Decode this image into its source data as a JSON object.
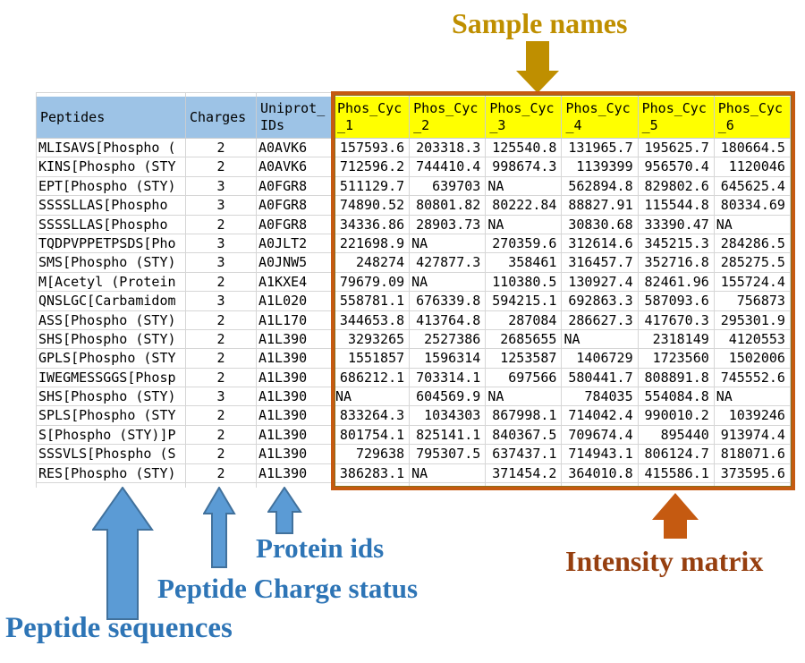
{
  "annotations": {
    "sample_names": {
      "label": "Sample names",
      "color": "#BF8F00"
    },
    "peptide_sequences": {
      "label": "Peptide sequences",
      "color": "#2E75B6"
    },
    "peptide_charge": {
      "label": "Peptide Charge status",
      "color": "#2E75B6"
    },
    "protein_ids": {
      "label": "Protein ids",
      "color": "#2E75B6"
    },
    "intensity_matrix": {
      "label": "Intensity matrix",
      "color": "#963F0F"
    }
  },
  "colors": {
    "header_fill_blue": "#9DC3E6",
    "header_fill_yellow": "#FFFF00",
    "matrix_outline_orange": "#C55A11",
    "arrow_blue_fill": "#5B9BD5",
    "arrow_blue_stroke": "#41719C",
    "arrow_orange_fill": "#C55A11",
    "arrow_dark_yellow_fill": "#BF8F00",
    "gridline": "#D6D6D6"
  },
  "table": {
    "header": {
      "peptides": "Peptides",
      "charges": "Charges",
      "uniprot": "Uniprot_IDs"
    },
    "sample_names": [
      "Phos_Cyc_1",
      "Phos_Cyc_2",
      "Phos_Cyc_3",
      "Phos_Cyc_4",
      "Phos_Cyc_5",
      "Phos_Cyc_6"
    ],
    "rows": [
      {
        "peptide": "MLISAVS[Phospho (",
        "charge": "2",
        "uniprot": "A0AVK6",
        "values": [
          "157593.6",
          "203318.3",
          "125540.8",
          "131965.7",
          "195625.7",
          "180664.5"
        ]
      },
      {
        "peptide": "KINS[Phospho (STY",
        "charge": "2",
        "uniprot": "A0AVK6",
        "values": [
          "712596.2",
          "744410.4",
          "998674.3",
          "1139399",
          "956570.4",
          "1120046"
        ]
      },
      {
        "peptide": "EPT[Phospho (STY)",
        "charge": "3",
        "uniprot": "A0FGR8",
        "values": [
          "511129.7",
          "639703",
          "NA",
          "562894.8",
          "829802.6",
          "645625.4"
        ]
      },
      {
        "peptide": "SSSSLLAS[Phospho",
        "charge": "3",
        "uniprot": "A0FGR8",
        "values": [
          "74890.52",
          "80801.82",
          "80222.84",
          "88827.91",
          "115544.8",
          "80334.69"
        ]
      },
      {
        "peptide": "SSSSLLAS[Phospho",
        "charge": "2",
        "uniprot": "A0FGR8",
        "values": [
          "34336.86",
          "28903.73",
          "NA",
          "30830.68",
          "33390.47",
          "NA"
        ]
      },
      {
        "peptide": "TQDPVPPETPSDS[Pho",
        "charge": "3",
        "uniprot": "A0JLT2",
        "values": [
          "221698.9",
          "NA",
          "270359.6",
          "312614.6",
          "345215.3",
          "284286.5"
        ]
      },
      {
        "peptide": "SMS[Phospho (STY)",
        "charge": "3",
        "uniprot": "A0JNW5",
        "values": [
          "248274",
          "427877.3",
          "358461",
          "316457.7",
          "352716.8",
          "285275.5"
        ]
      },
      {
        "peptide": "M[Acetyl (Protein",
        "charge": "2",
        "uniprot": "A1KXE4",
        "values": [
          "79679.09",
          "NA",
          "110380.5",
          "130927.4",
          "82461.96",
          "155724.4"
        ]
      },
      {
        "peptide": "QNSLGC[Carbamidom",
        "charge": "3",
        "uniprot": "A1L020",
        "values": [
          "558781.1",
          "676339.8",
          "594215.1",
          "692863.3",
          "587093.6",
          "756873"
        ]
      },
      {
        "peptide": "ASS[Phospho (STY)",
        "charge": "2",
        "uniprot": "A1L170",
        "values": [
          "344653.8",
          "413764.8",
          "287084",
          "286627.3",
          "417670.3",
          "295301.9"
        ]
      },
      {
        "peptide": "SHS[Phospho (STY)",
        "charge": "2",
        "uniprot": "A1L390",
        "values": [
          "3293265",
          "2527386",
          "2685655",
          "NA",
          "2318149",
          "4120553"
        ]
      },
      {
        "peptide": "GPLS[Phospho (STY",
        "charge": "2",
        "uniprot": "A1L390",
        "values": [
          "1551857",
          "1596314",
          "1253587",
          "1406729",
          "1723560",
          "1502006"
        ]
      },
      {
        "peptide": "IWEGMESSGGS[Phosp",
        "charge": "2",
        "uniprot": "A1L390",
        "values": [
          "686212.1",
          "703314.1",
          "697566",
          "580441.7",
          "808891.8",
          "745552.6"
        ]
      },
      {
        "peptide": "SHS[Phospho (STY)",
        "charge": "3",
        "uniprot": "A1L390",
        "values": [
          "NA",
          "604569.9",
          "NA",
          "784035",
          "554084.8",
          "NA"
        ]
      },
      {
        "peptide": "SPLS[Phospho (STY",
        "charge": "2",
        "uniprot": "A1L390",
        "values": [
          "833264.3",
          "1034303",
          "867998.1",
          "714042.4",
          "990010.2",
          "1039246"
        ]
      },
      {
        "peptide": "S[Phospho (STY)]P",
        "charge": "2",
        "uniprot": "A1L390",
        "values": [
          "801754.1",
          "825141.1",
          "840367.5",
          "709674.4",
          "895440",
          "913974.4"
        ]
      },
      {
        "peptide": "SSSVLS[Phospho (S",
        "charge": "2",
        "uniprot": "A1L390",
        "values": [
          "729638",
          "795307.5",
          "637437.1",
          "714943.1",
          "806124.7",
          "818071.6"
        ]
      },
      {
        "peptide": "RES[Phospho (STY)",
        "charge": "2",
        "uniprot": "A1L390",
        "values": [
          "386283.1",
          "NA",
          "371454.2",
          "364010.8",
          "415586.1",
          "373595.6"
        ]
      }
    ]
  }
}
